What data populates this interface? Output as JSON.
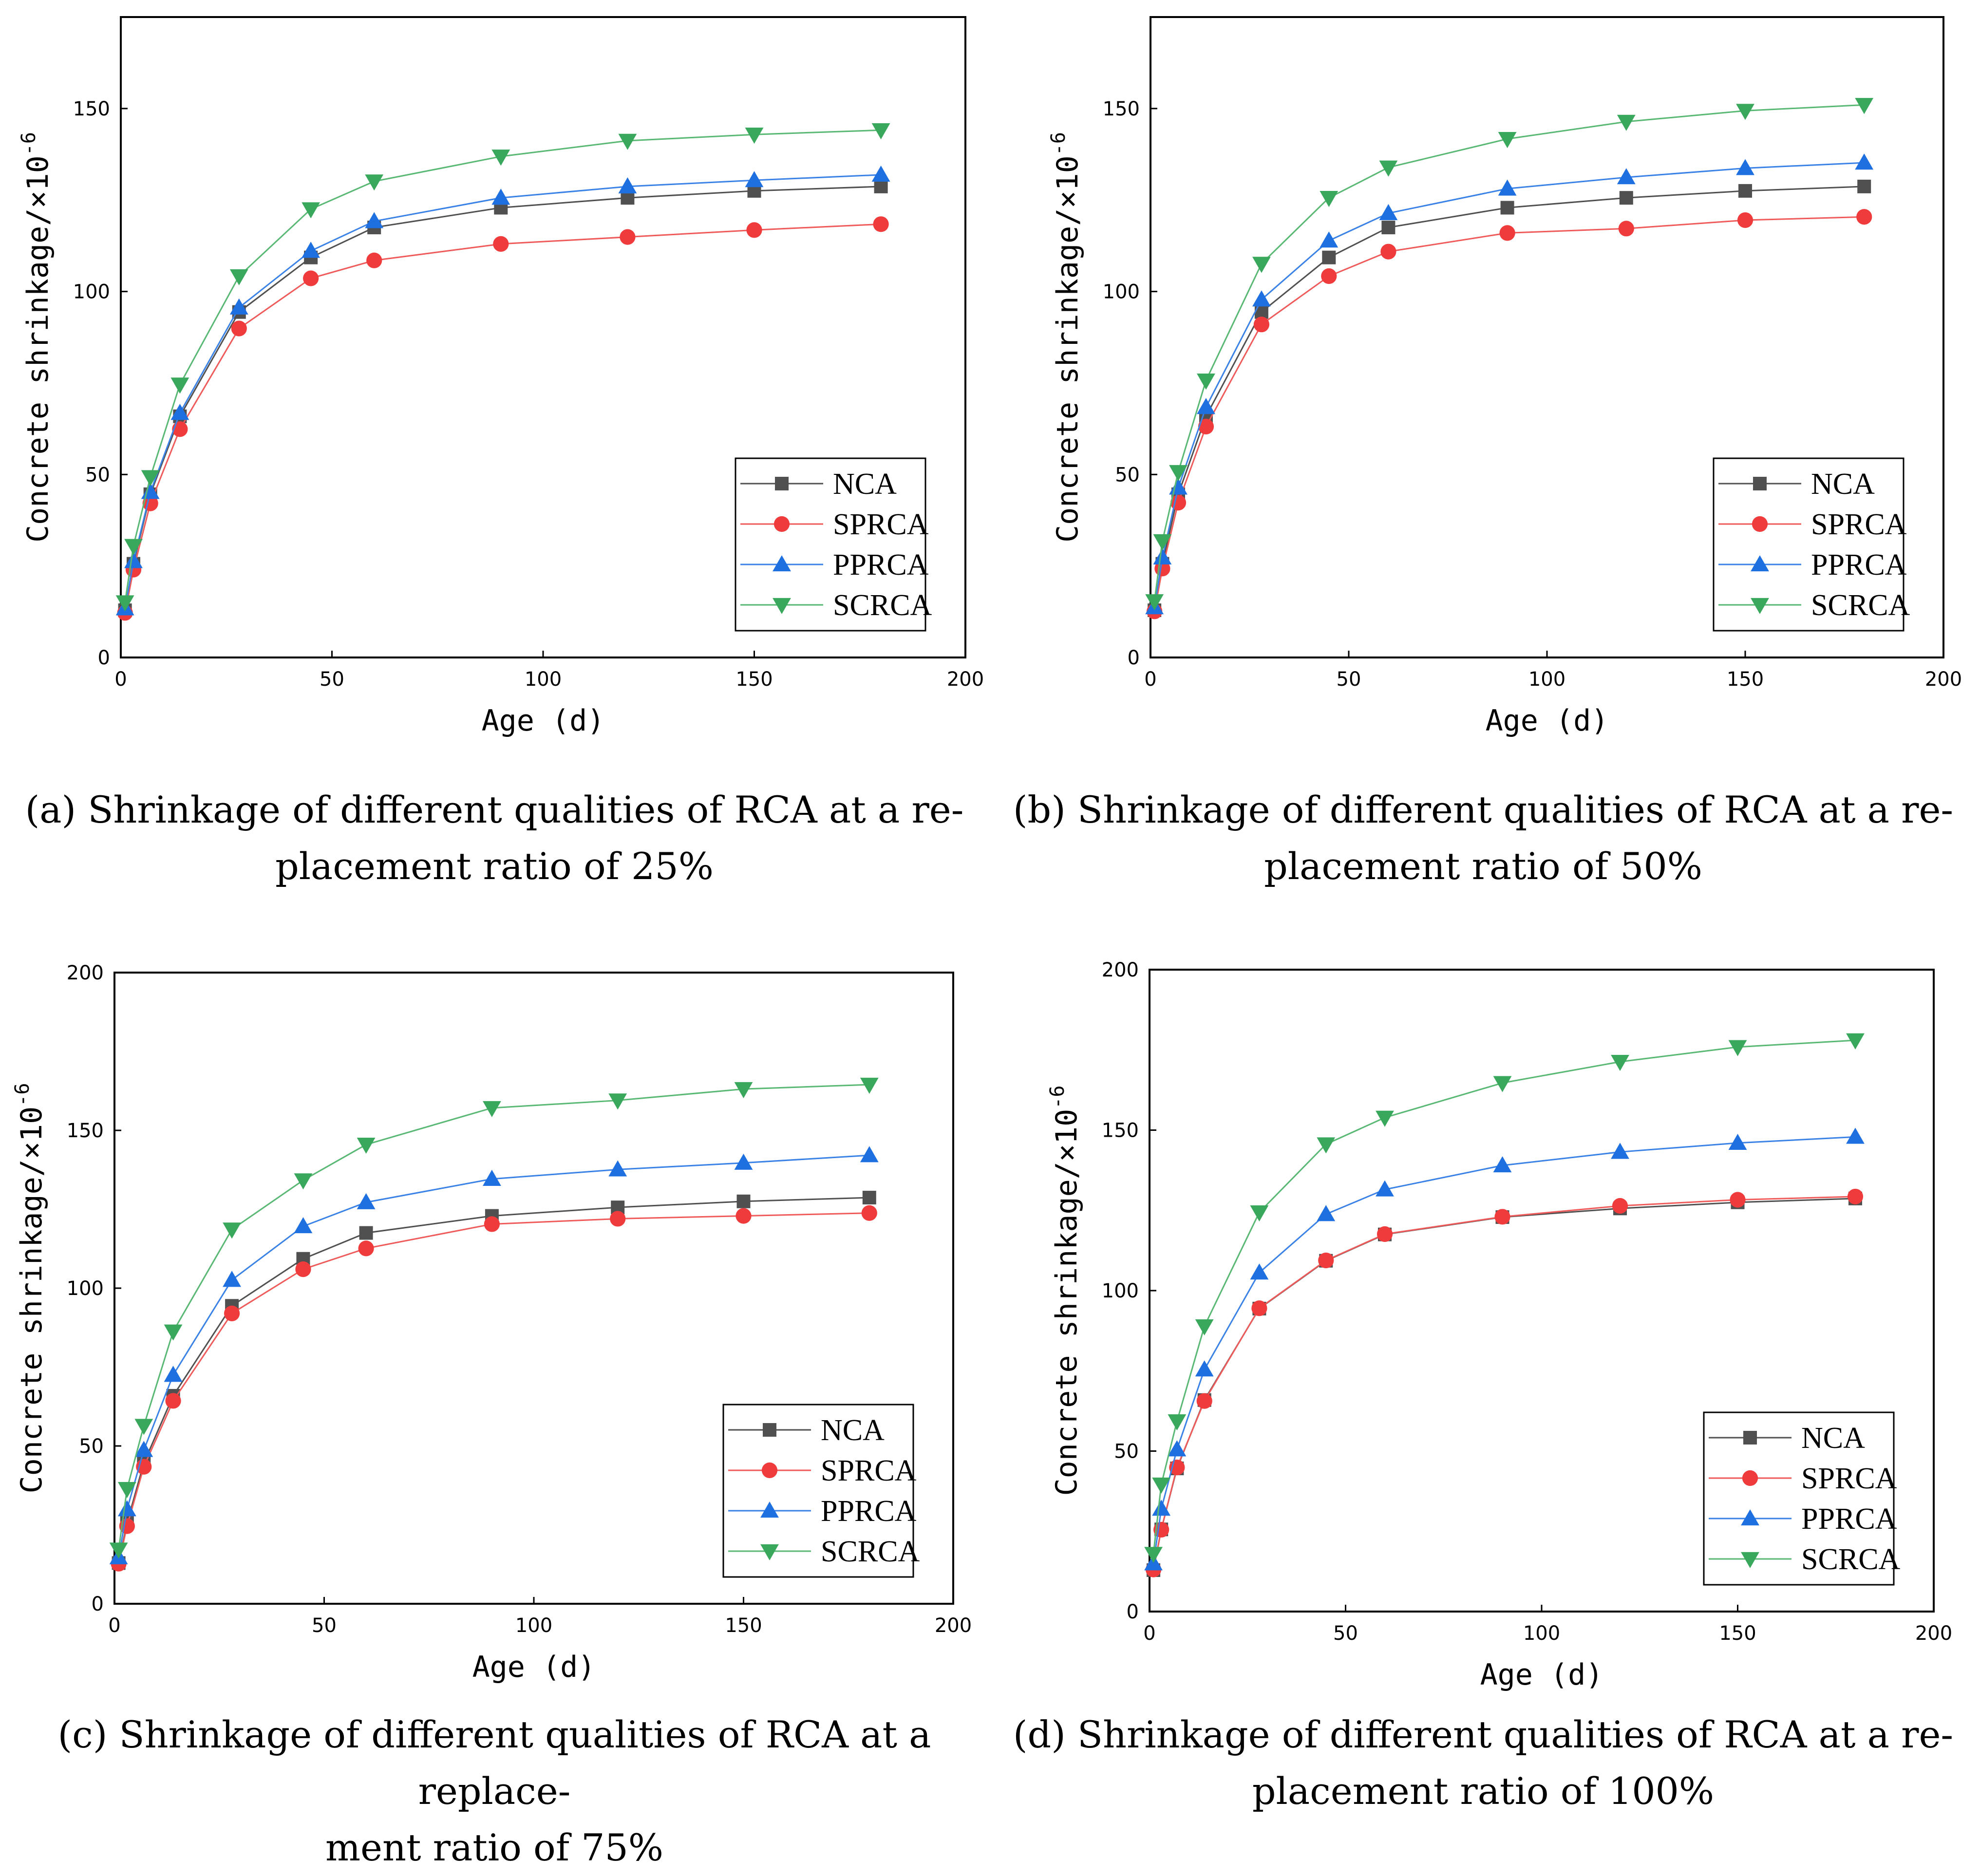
{
  "figure": {
    "colors": {
      "NCA": "#505050",
      "SPRCA": "#ef3b3b",
      "PPRCA": "#1e6fe0",
      "SCRCA": "#3aa85c"
    },
    "line_colors": {
      "NCA": "#505050",
      "SPRCA": "#ef5a5a",
      "PPRCA": "#3b82e6",
      "SCRCA": "#59b874"
    },
    "markers": {
      "NCA": "square",
      "SPRCA": "circle",
      "PPRCA": "triangle-up",
      "SCRCA": "triangle-down"
    }
  },
  "chart_data": [
    {
      "id": "a",
      "type": "line",
      "caption": "(a) Shrinkage of different qualities of RCA at a re- placement ratio of 25%",
      "caption_lines": [
        "(a) Shrinkage of different qualities of RCA at a re-",
        "placement ratio of 25%"
      ],
      "xlabel": "Age (d)",
      "ylabel": "Concrete shrinkage/×10",
      "ylabel_exp": "-6",
      "xlim": [
        0,
        200
      ],
      "ylim": [
        0,
        175
      ],
      "xticks": [
        "0",
        "50",
        "100",
        "150",
        "200"
      ],
      "yticks": [
        "0",
        "50",
        "100",
        "150"
      ],
      "legend_position": "bottom-right",
      "x": [
        1,
        3,
        7,
        14,
        28,
        45,
        60,
        90,
        120,
        150,
        180
      ],
      "series": [
        {
          "name": "NCA",
          "values": [
            12.9,
            25.6,
            44.6,
            65.9,
            94.4,
            109.3,
            117.5,
            122.9,
            125.6,
            127.5,
            128.7
          ]
        },
        {
          "name": "SPRCA",
          "values": [
            12.2,
            24.0,
            42.1,
            62.4,
            89.9,
            103.6,
            108.5,
            113.0,
            114.9,
            116.8,
            118.4
          ]
        },
        {
          "name": "PPRCA",
          "values": [
            13.4,
            26.3,
            45.2,
            66.8,
            95.6,
            111.1,
            119.2,
            125.6,
            128.7,
            130.4,
            131.9
          ]
        },
        {
          "name": "SCRCA",
          "values": [
            15.1,
            30.5,
            49.3,
            74.6,
            104.2,
            122.5,
            130.1,
            136.9,
            141.2,
            142.9,
            144.1
          ]
        }
      ]
    },
    {
      "id": "b",
      "type": "line",
      "caption": "(b) Shrinkage of different qualities of RCA at a re- placement ratio of 50%",
      "caption_lines": [
        "(b) Shrinkage of different qualities of RCA at a re-",
        "placement ratio of 50%"
      ],
      "xlabel": "Age (d)",
      "ylabel": "Concrete shrinkage/×10",
      "ylabel_exp": "-6",
      "xlim": [
        0,
        200
      ],
      "ylim": [
        0,
        175
      ],
      "xticks": [
        "0",
        "50",
        "100",
        "150",
        "200"
      ],
      "yticks": [
        "0",
        "50",
        "100",
        "150"
      ],
      "legend_position": "bottom-right",
      "x": [
        1,
        3,
        7,
        14,
        28,
        45,
        60,
        90,
        120,
        150,
        180
      ],
      "series": [
        {
          "name": "NCA",
          "values": [
            12.9,
            25.6,
            44.6,
            65.9,
            94.4,
            109.3,
            117.5,
            122.9,
            125.6,
            127.5,
            128.7
          ]
        },
        {
          "name": "SPRCA",
          "values": [
            12.6,
            24.3,
            42.3,
            63.1,
            91.0,
            104.2,
            110.9,
            116.0,
            117.2,
            119.5,
            120.4
          ]
        },
        {
          "name": "PPRCA",
          "values": [
            13.7,
            27.3,
            46.4,
            68.4,
            97.8,
            113.9,
            121.4,
            128.1,
            131.2,
            133.7,
            135.2
          ]
        },
        {
          "name": "SCRCA",
          "values": [
            15.4,
            31.8,
            50.7,
            75.7,
            107.6,
            125.6,
            133.9,
            141.7,
            146.4,
            149.4,
            151.0
          ]
        }
      ]
    },
    {
      "id": "c",
      "type": "line",
      "caption": "(c) Shrinkage of different qualities of RCA at a replace- ment ratio of 75%",
      "caption_lines": [
        "(c) Shrinkage of different qualities of RCA at a replace-",
        "ment ratio of 75%"
      ],
      "xlabel": "Age (d)",
      "ylabel": "Concrete shrinkage/×10",
      "ylabel_exp": "-6",
      "xlim": [
        0,
        200
      ],
      "ylim": [
        0,
        200
      ],
      "xticks": [
        "0",
        "50",
        "100",
        "150",
        "200"
      ],
      "yticks": [
        "0",
        "50",
        "100",
        "150",
        "200"
      ],
      "legend_position": "bottom-right",
      "x": [
        1,
        3,
        7,
        14,
        28,
        45,
        60,
        90,
        120,
        150,
        180
      ],
      "series": [
        {
          "name": "NCA",
          "values": [
            12.9,
            25.6,
            44.6,
            65.9,
            94.4,
            109.3,
            117.5,
            122.9,
            125.6,
            127.5,
            128.7
          ]
        },
        {
          "name": "SPRCA",
          "values": [
            12.7,
            24.6,
            43.4,
            64.3,
            92.0,
            106.0,
            112.6,
            120.3,
            122.0,
            122.9,
            123.8
          ]
        },
        {
          "name": "PPRCA",
          "values": [
            14.7,
            29.9,
            48.7,
            72.5,
            102.6,
            119.6,
            127.2,
            134.6,
            137.6,
            139.7,
            142.1
          ]
        },
        {
          "name": "SCRCA",
          "values": [
            17.2,
            36.4,
            56.4,
            86.3,
            118.6,
            134.2,
            145.5,
            157.1,
            159.5,
            163.1,
            164.5
          ]
        }
      ]
    },
    {
      "id": "d",
      "type": "line",
      "caption": "(d) Shrinkage of different qualities of RCA at a re- placement ratio of 100%",
      "caption_lines": [
        "(d) Shrinkage of different qualities of RCA at a re-",
        "placement ratio of 100%"
      ],
      "xlabel": "Age (d)",
      "ylabel": "Concrete shrinkage/×10",
      "ylabel_exp": "-6",
      "xlim": [
        0,
        200
      ],
      "ylim": [
        0,
        200
      ],
      "xticks": [
        "0",
        "50",
        "100",
        "150",
        "200"
      ],
      "yticks": [
        "0",
        "50",
        "100",
        "150",
        "200"
      ],
      "legend_position": "bottom-right",
      "x": [
        1,
        3,
        7,
        14,
        28,
        45,
        60,
        90,
        120,
        150,
        180
      ],
      "series": [
        {
          "name": "NCA",
          "values": [
            12.9,
            25.6,
            44.6,
            65.9,
            94.4,
            109.3,
            117.5,
            122.9,
            125.6,
            127.5,
            128.7
          ]
        },
        {
          "name": "SPRCA",
          "values": [
            13.1,
            25.5,
            44.9,
            65.6,
            94.5,
            109.4,
            117.6,
            123.0,
            126.4,
            128.3,
            129.3
          ]
        },
        {
          "name": "PPRCA",
          "values": [
            15.0,
            32.0,
            50.5,
            75.4,
            105.6,
            123.8,
            131.5,
            139.0,
            143.2,
            146.0,
            147.9
          ]
        },
        {
          "name": "SCRCA",
          "values": [
            18.0,
            39.6,
            59.3,
            88.9,
            124.4,
            145.6,
            153.9,
            164.7,
            171.3,
            175.9,
            178.0
          ]
        }
      ]
    }
  ]
}
